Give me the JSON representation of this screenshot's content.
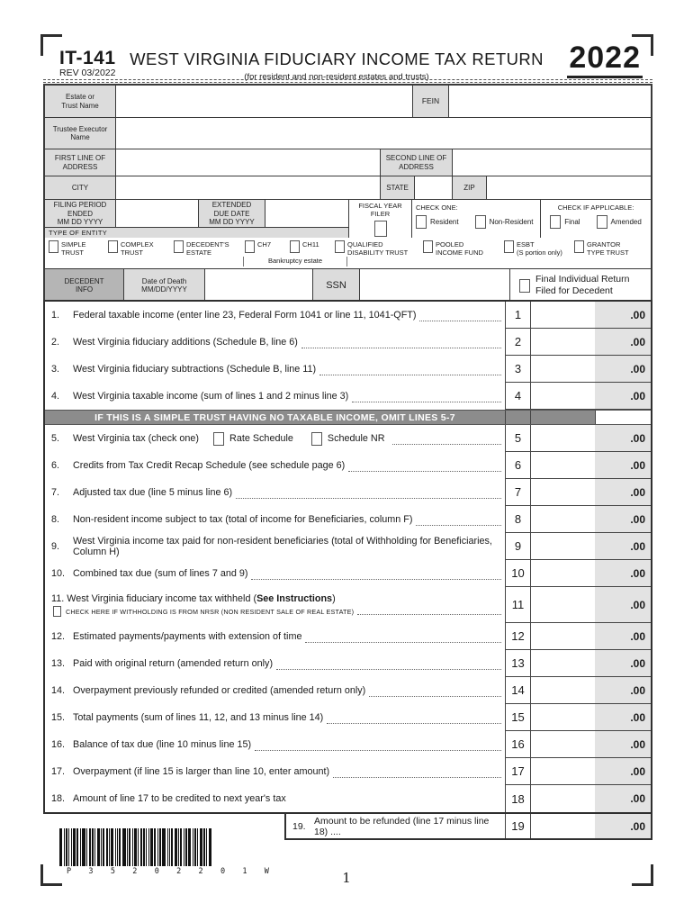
{
  "form": {
    "id": "IT-141",
    "rev": "REV 03/2022",
    "title": "WEST VIRGINIA FIDUCIARY INCOME TAX RETURN",
    "subtitle": "(for resident and non-resident estates and trusts)",
    "year": "2022"
  },
  "identity": {
    "estate_label": "Estate or\nTrust Name",
    "fein_label": "FEIN",
    "trustee_label": "Trustee Executor\nName",
    "address1_label": "FIRST LINE OF\nADDRESS",
    "address2_label": "SECOND LINE OF\nADDRESS",
    "city_label": "CITY",
    "state_label": "STATE",
    "zip_label": "ZIP",
    "filing_period_label": "FILING PERIOD\nENDED\nMM DD YYYY",
    "extended_due_label": "EXTENDED\nDUE DATE\nMM DD YYYY",
    "fiscal_year_label": "FISCAL YEAR FILER",
    "check_one_label": "CHECK ONE:",
    "resident_label": "Resident",
    "nonresident_label": "Non-Resident",
    "check_if_label": "CHECK IF APPLICABLE:",
    "final_label": "Final",
    "amended_label": "Amended"
  },
  "entity": {
    "header": "TYPE OF ENTITY",
    "options": [
      "SIMPLE\nTRUST",
      "COMPLEX\nTRUST",
      "DECEDENT'S\nESTATE",
      "CH7",
      "CH11",
      "QUALIFIED\nDISABILITY TRUST",
      "POOLED\nINCOME FUND",
      "ESBT\n(S portion only)",
      "GRANTOR\nTYPE TRUST"
    ],
    "bankruptcy_label": "Bankruptcy estate"
  },
  "decedent": {
    "info_label": "DECEDENT\nINFO",
    "date_label": "Date of Death\nMM/DD/YYYY",
    "ssn_label": "SSN",
    "final_return_label": "Final Individual Return\nFiled for Decedent"
  },
  "divider_text": "IF THIS IS A SIMPLE TRUST HAVING NO TAXABLE INCOME, OMIT LINES 5-7",
  "cents_suffix": ".00",
  "main_lines": [
    {
      "num": "1",
      "label": "Federal taxable income (enter line 23, Federal Form 1041 or line 11, 1041-QFT)",
      "dots": true
    },
    {
      "num": "2",
      "label": "West Virginia fiduciary additions (Schedule B, line 6)",
      "dots": true
    },
    {
      "num": "3",
      "label": "West Virginia fiduciary subtractions (Schedule B, line 11)",
      "dots": true
    },
    {
      "num": "4",
      "label": "West Virginia taxable income (sum of lines 1 and 2 minus line 3)",
      "dots": true
    },
    {
      "num": "5",
      "label": "West Virginia tax (check one)",
      "checkboxes": [
        "Rate Schedule",
        "Schedule NR"
      ],
      "dots": true
    },
    {
      "num": "6",
      "label": "Credits from Tax Credit Recap Schedule (see schedule page 6)",
      "dots": true
    },
    {
      "num": "7",
      "label": "Adjusted tax due (line 5 minus line 6)",
      "dots": true
    },
    {
      "num": "8",
      "label": "Non-resident income subject to tax (total of income for Beneficiaries, column F)",
      "dots": true
    },
    {
      "num": "9",
      "label": "West Virginia income tax paid for non-resident beneficiaries (total of Withholding for Beneficiaries, Column H)",
      "dots": false
    },
    {
      "num": "10",
      "label": "Combined tax due (sum of lines 7 and 9)",
      "dots": true
    },
    {
      "num": "11",
      "pre": "West Virginia fiduciary income tax withheld (",
      "bold": "See Instructions",
      "post": ")",
      "subcheck": "CHECK HERE IF WITHHOLDING IS FROM NRSR (NON RESIDENT SALE OF REAL ESTATE)",
      "dots": false,
      "tall": true
    },
    {
      "num": "12",
      "label": "Estimated payments/payments with extension of time",
      "dots": true
    },
    {
      "num": "13",
      "label": "Paid with original return (amended return only)",
      "dots": true
    },
    {
      "num": "14",
      "label": "Overpayment previously refunded or credited (amended return only)",
      "dots": true
    },
    {
      "num": "15",
      "label": "Total payments (sum of lines 11, 12, and 13 minus line 14)",
      "dots": true
    },
    {
      "num": "16",
      "label": "Balance of tax due (line 10 minus line 15)",
      "dots": true
    },
    {
      "num": "17",
      "label": "Overpayment (if line 15 is larger than line 10, enter amount)",
      "dots": true
    },
    {
      "num": "18",
      "label": "Amount of line 17 to be credited to next year's tax",
      "dots": false
    }
  ],
  "line19": {
    "prefix": "19.",
    "label": "Amount to be refunded (line 17 minus line 18) ....",
    "num": "19",
    "cents": ".00"
  },
  "barcode": {
    "text": "P 3 5 2 0 2 2 0 1 W"
  },
  "page_number": "1"
}
